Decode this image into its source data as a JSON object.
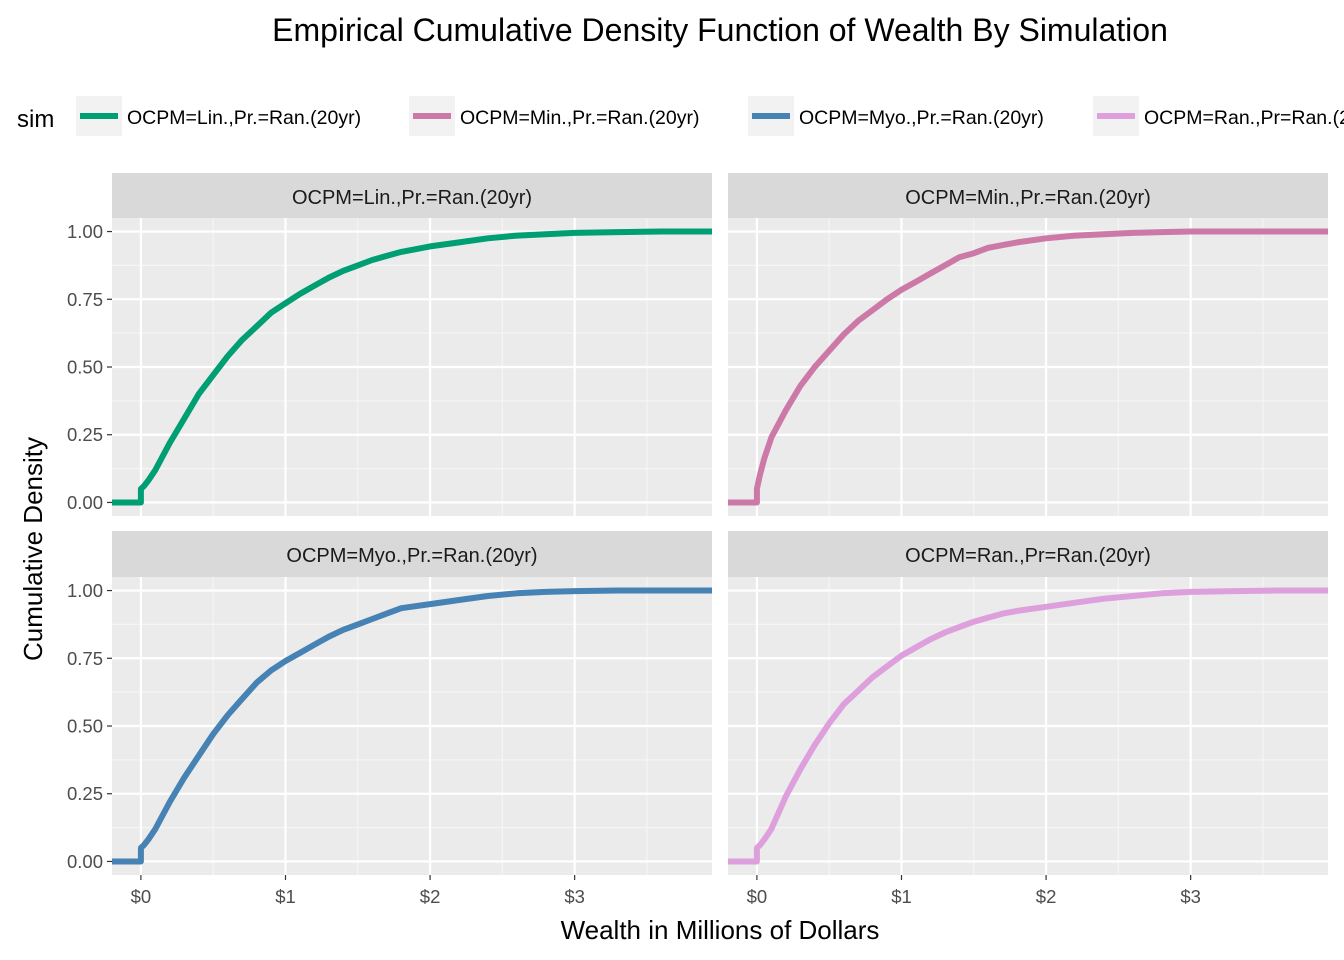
{
  "chart_data": {
    "type": "line",
    "title": "Empirical Cumulative Density Function of Wealth By Simulation",
    "xlabel": "Wealth in Millions of Dollars",
    "ylabel": "Cumulative Density",
    "xlim": [
      -0.2,
      3.95
    ],
    "ylim": [
      -0.05,
      1.05
    ],
    "x_ticks": [
      0,
      1,
      2,
      3
    ],
    "x_tick_labels": [
      "$0",
      "$1",
      "$2",
      "$3"
    ],
    "y_ticks": [
      0,
      0.25,
      0.5,
      0.75,
      1.0
    ],
    "y_tick_labels": [
      "0.00",
      "0.25",
      "0.50",
      "0.75",
      "1.00"
    ],
    "grid": true,
    "legend": {
      "title": "sim",
      "position": "top",
      "entries": [
        "OCPM=Lin.,Pr.=Ran.(20yr)",
        "OCPM=Min.,Pr.=Ran.(20yr)",
        "OCPM=Myo.,Pr.=Ran.(20yr)",
        "OCPM=Ran.,Pr=Ran.(20yr)"
      ]
    },
    "series": [
      {
        "name": "OCPM=Lin.,Pr.=Ran.(20yr)",
        "color": "#009E73",
        "x": [
          -0.2,
          0,
          0,
          0.02,
          0.05,
          0.1,
          0.15,
          0.2,
          0.3,
          0.4,
          0.5,
          0.6,
          0.7,
          0.8,
          0.9,
          1.0,
          1.1,
          1.2,
          1.3,
          1.4,
          1.5,
          1.6,
          1.7,
          1.8,
          2.0,
          2.2,
          2.4,
          2.6,
          2.8,
          3.0,
          3.3,
          3.6,
          3.95
        ],
        "y": [
          0,
          0,
          0.05,
          0.06,
          0.08,
          0.12,
          0.17,
          0.22,
          0.31,
          0.4,
          0.47,
          0.54,
          0.6,
          0.65,
          0.7,
          0.735,
          0.77,
          0.8,
          0.83,
          0.855,
          0.875,
          0.895,
          0.91,
          0.925,
          0.945,
          0.96,
          0.975,
          0.985,
          0.99,
          0.995,
          0.998,
          1.0,
          1.0
        ]
      },
      {
        "name": "OCPM=Min.,Pr.=Ran.(20yr)",
        "color": "#CC79A7",
        "x": [
          -0.2,
          0,
          0,
          0.02,
          0.05,
          0.1,
          0.2,
          0.3,
          0.4,
          0.5,
          0.6,
          0.7,
          0.8,
          0.9,
          1.0,
          1.1,
          1.2,
          1.3,
          1.4,
          1.5,
          1.6,
          1.7,
          1.8,
          2.0,
          2.2,
          2.4,
          2.6,
          2.8,
          3.0,
          3.3,
          3.6,
          3.95
        ],
        "y": [
          0,
          0,
          0.05,
          0.1,
          0.16,
          0.24,
          0.34,
          0.43,
          0.5,
          0.56,
          0.62,
          0.67,
          0.71,
          0.75,
          0.785,
          0.815,
          0.845,
          0.875,
          0.905,
          0.92,
          0.94,
          0.95,
          0.96,
          0.975,
          0.985,
          0.99,
          0.995,
          0.998,
          1.0,
          1.0,
          1.0,
          1.0
        ]
      },
      {
        "name": "OCPM=Myo.,Pr.=Ran.(20yr)",
        "color": "#4682B4",
        "x": [
          -0.2,
          0,
          0,
          0.02,
          0.05,
          0.1,
          0.15,
          0.2,
          0.3,
          0.4,
          0.5,
          0.6,
          0.7,
          0.8,
          0.9,
          1.0,
          1.1,
          1.2,
          1.3,
          1.4,
          1.5,
          1.6,
          1.7,
          1.8,
          2.0,
          2.2,
          2.4,
          2.6,
          2.8,
          3.0,
          3.3,
          3.6,
          3.95
        ],
        "y": [
          0,
          0,
          0.05,
          0.06,
          0.08,
          0.12,
          0.17,
          0.22,
          0.31,
          0.39,
          0.47,
          0.54,
          0.6,
          0.66,
          0.705,
          0.74,
          0.77,
          0.8,
          0.83,
          0.855,
          0.875,
          0.895,
          0.915,
          0.935,
          0.95,
          0.965,
          0.98,
          0.99,
          0.995,
          0.998,
          1.0,
          1.0,
          1.0
        ]
      },
      {
        "name": "OCPM=Ran.,Pr=Ran.(20yr)",
        "color": "#DDA0DD",
        "x": [
          -0.2,
          0,
          0,
          0.02,
          0.05,
          0.1,
          0.15,
          0.2,
          0.3,
          0.4,
          0.5,
          0.6,
          0.7,
          0.8,
          0.9,
          1.0,
          1.1,
          1.2,
          1.3,
          1.4,
          1.5,
          1.6,
          1.7,
          1.8,
          2.0,
          2.2,
          2.4,
          2.6,
          2.8,
          3.0,
          3.3,
          3.6,
          3.95
        ],
        "y": [
          0,
          0,
          0.05,
          0.06,
          0.08,
          0.12,
          0.18,
          0.24,
          0.34,
          0.43,
          0.51,
          0.58,
          0.63,
          0.68,
          0.72,
          0.76,
          0.79,
          0.82,
          0.845,
          0.865,
          0.885,
          0.9,
          0.915,
          0.925,
          0.94,
          0.955,
          0.97,
          0.98,
          0.99,
          0.995,
          0.998,
          1.0,
          1.0
        ]
      }
    ]
  }
}
